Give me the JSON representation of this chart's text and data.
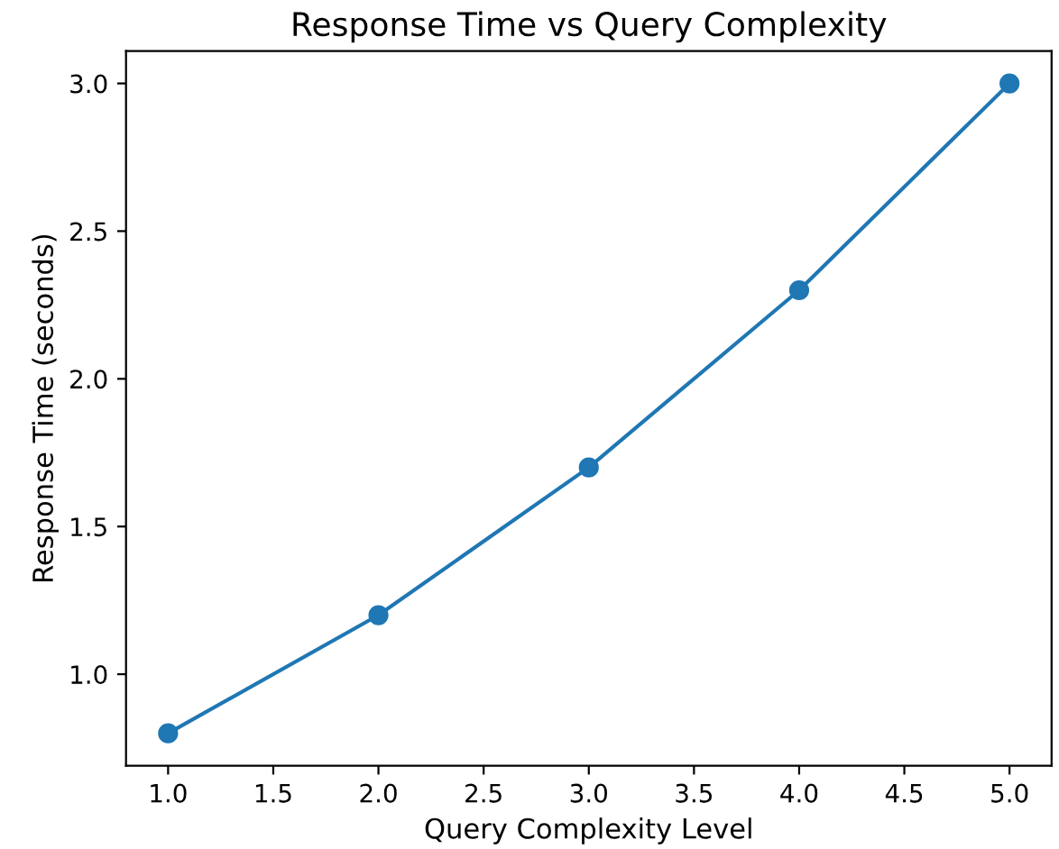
{
  "chart_data": {
    "type": "line",
    "title": "Response Time vs Query Complexity",
    "xlabel": "Query Complexity Level",
    "ylabel": "Response Time (seconds)",
    "x": [
      1,
      2,
      3,
      4,
      5
    ],
    "series": [
      {
        "color": "#1f77b4",
        "values": [
          0.8,
          1.2,
          1.7,
          2.3,
          3.0
        ]
      }
    ],
    "xlim": [
      0.8,
      5.2
    ],
    "ylim": [
      0.69,
      3.11
    ],
    "xticks": [
      {
        "value": 1,
        "label": "1.0"
      },
      {
        "value": 1.5,
        "label": "1.5"
      },
      {
        "value": 2,
        "label": "2.0"
      },
      {
        "value": 2.5,
        "label": "2.5"
      },
      {
        "value": 3,
        "label": "3.0"
      },
      {
        "value": 3.5,
        "label": "3.5"
      },
      {
        "value": 4,
        "label": "4.0"
      },
      {
        "value": 4.5,
        "label": "4.5"
      },
      {
        "value": 5,
        "label": "5.0"
      }
    ],
    "yticks": [
      {
        "value": 1,
        "label": "1.0"
      },
      {
        "value": 1.5,
        "label": "1.5"
      },
      {
        "value": 2,
        "label": "2.0"
      },
      {
        "value": 2.5,
        "label": "2.5"
      },
      {
        "value": 3,
        "label": "3.0"
      }
    ],
    "marker": "circle",
    "line_style": "solid",
    "grid": false,
    "legend": false
  }
}
